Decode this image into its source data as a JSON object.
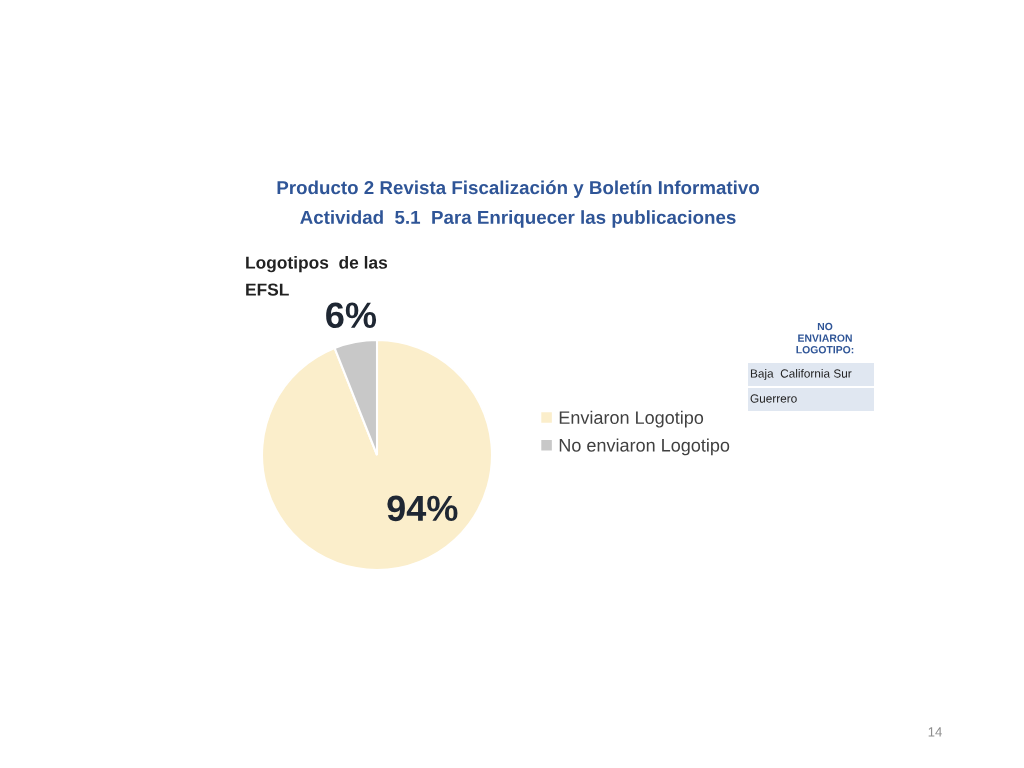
{
  "chart_data": [
    {
      "type": "pie",
      "title": "Producto 2 Revista Fiscalización y Boletín Informativo\nActividad  5.1  Para Enriquecer las publicaciones",
      "subtitle": "Logotipos  de las\nEFSL",
      "categories": [
        "Enviaron Logotipo",
        "No enviaron Logotipo"
      ],
      "values": [
        94,
        6
      ],
      "colors": [
        "#fbeecb",
        "#c8c8c8"
      ],
      "value_labels": [
        "94%",
        "6%"
      ],
      "legend": "right",
      "annotations": [
        "14"
      ]
    },
    {
      "type": "other",
      "title": "NO\nENVIARON\nLOGOTIPO:",
      "annotations": [
        "Baja  California Sur",
        "Guerrero"
      ]
    }
  ]
}
